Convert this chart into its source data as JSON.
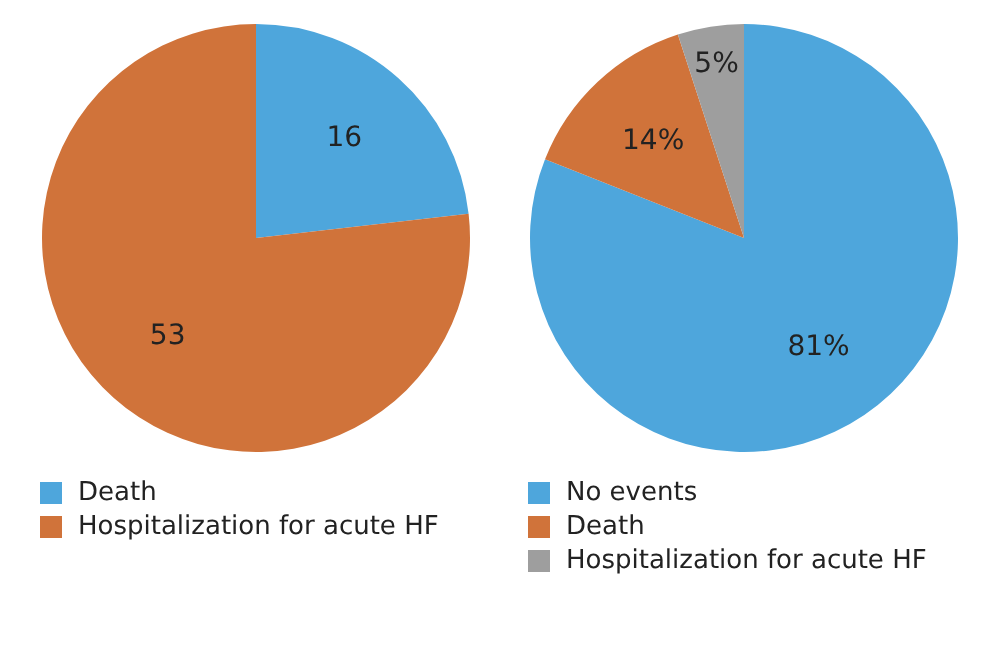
{
  "chart_data": [
    {
      "type": "pie",
      "categories": [
        "Death",
        "Hospitalization for acute HF"
      ],
      "values": [
        16,
        53
      ],
      "colors": [
        "#4ea6dc",
        "#d0733a"
      ],
      "data_labels": true,
      "legend": "bottom"
    },
    {
      "type": "pie",
      "categories": [
        "No events",
        "Death",
        "Hospitalization for acute HF"
      ],
      "values": [
        81,
        14,
        5
      ],
      "colors": [
        "#4ea6dc",
        "#d0733a",
        "#9e9e9e"
      ],
      "value_labels": [
        "81%",
        "14%",
        "5%"
      ],
      "legend": "bottom"
    }
  ]
}
